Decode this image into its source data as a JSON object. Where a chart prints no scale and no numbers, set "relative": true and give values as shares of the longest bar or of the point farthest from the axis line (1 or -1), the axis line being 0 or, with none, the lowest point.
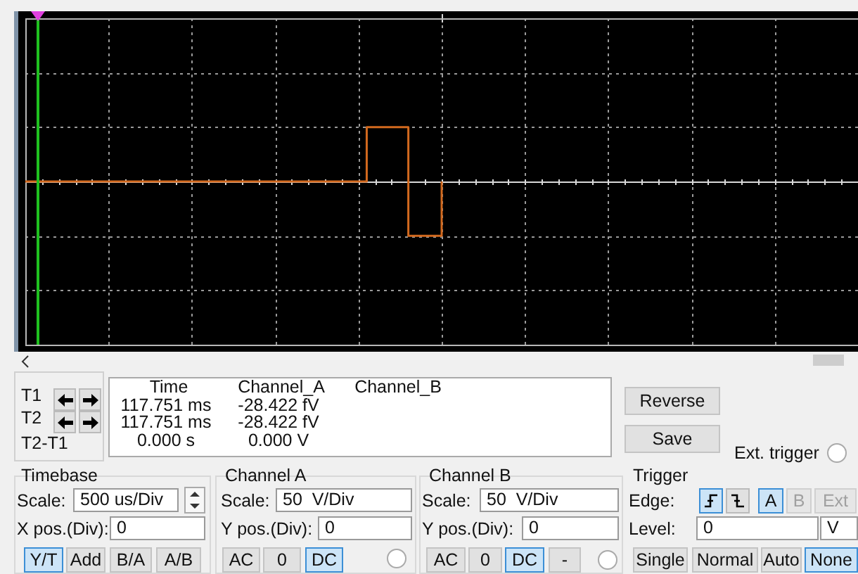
{
  "chart_data": [
    {
      "type": "step",
      "relative": true,
      "grid": true,
      "categories": [
        null,
        null,
        null,
        null,
        null,
        null,
        null,
        null,
        null,
        null,
        null,
        null,
        null,
        null,
        null,
        null,
        null,
        null,
        null,
        null,
        null,
        null,
        null,
        null,
        null,
        null,
        null,
        null,
        null,
        null,
        null,
        null,
        null,
        null,
        null,
        null,
        null,
        null,
        null,
        null,
        null,
        null,
        null,
        null,
        null,
        null,
        null,
        null,
        null,
        null,
        null,
        null,
        null,
        null,
        null,
        null,
        null,
        null,
        null,
        null,
        null,
        null,
        null,
        null,
        null,
        null,
        null,
        null,
        null,
        null,
        null,
        null,
        null,
        null,
        null,
        null,
        null,
        null,
        null,
        null,
        null,
        null,
        null,
        null,
        null,
        null,
        null,
        null,
        null,
        null,
        null,
        null,
        null,
        null,
        null,
        null,
        null,
        null,
        null,
        null,
        null
      ],
      "series": [
        {
          "color": "#d2691e",
          "values": [
            0,
            0,
            0,
            0,
            0,
            0,
            0,
            0,
            0,
            0,
            0,
            0,
            0,
            0,
            0,
            0,
            0,
            0,
            0,
            0,
            0,
            0,
            0,
            0,
            0,
            0,
            0,
            0,
            0,
            0,
            0,
            0,
            0,
            0,
            0,
            0,
            0,
            0,
            0,
            0,
            0,
            1,
            1,
            1,
            1,
            1,
            -1,
            -1,
            -1,
            -1,
            0,
            null,
            null,
            null,
            null,
            null,
            null,
            null,
            null,
            null,
            null,
            null,
            null,
            null,
            null,
            null,
            null,
            null,
            null,
            null,
            null,
            null,
            null,
            null,
            null,
            null,
            null,
            null,
            null,
            null,
            null,
            null,
            null,
            null,
            null,
            null,
            null,
            null,
            null,
            null,
            null,
            null,
            null,
            null,
            null,
            null,
            null,
            null,
            null,
            null,
            null
          ]
        }
      ]
    },
    {
      "type": "other",
      "annotations": [
        "T1",
        "T2",
        "T2-T1",
        "Time",
        "Channel_A",
        "Channel_B",
        "117.751 ms",
        "-28.422 fV",
        "117.751 ms",
        "-28.422 fV",
        "0.000 s",
        "0.000 V",
        "Reverse",
        "Save",
        "Ext. trigger",
        "Timebase",
        "Scale:",
        "500 us/Div",
        "X pos.(Div):",
        "0",
        "Y/T",
        "Add",
        "B/A",
        "A/B",
        "Channel A",
        "Scale:",
        "50  V/Div",
        "Y pos.(Div):",
        "0",
        "AC",
        "0",
        "DC",
        "Channel B",
        "Scale:",
        "50  V/Div",
        "Y pos.(Div):",
        "0",
        "AC",
        "0",
        "DC",
        "-",
        "Trigger",
        "Edge:",
        "A",
        "B",
        "Ext",
        "Level:",
        "0",
        "V",
        "Single",
        "Normal",
        "Auto",
        "None"
      ]
    }
  ]
}
